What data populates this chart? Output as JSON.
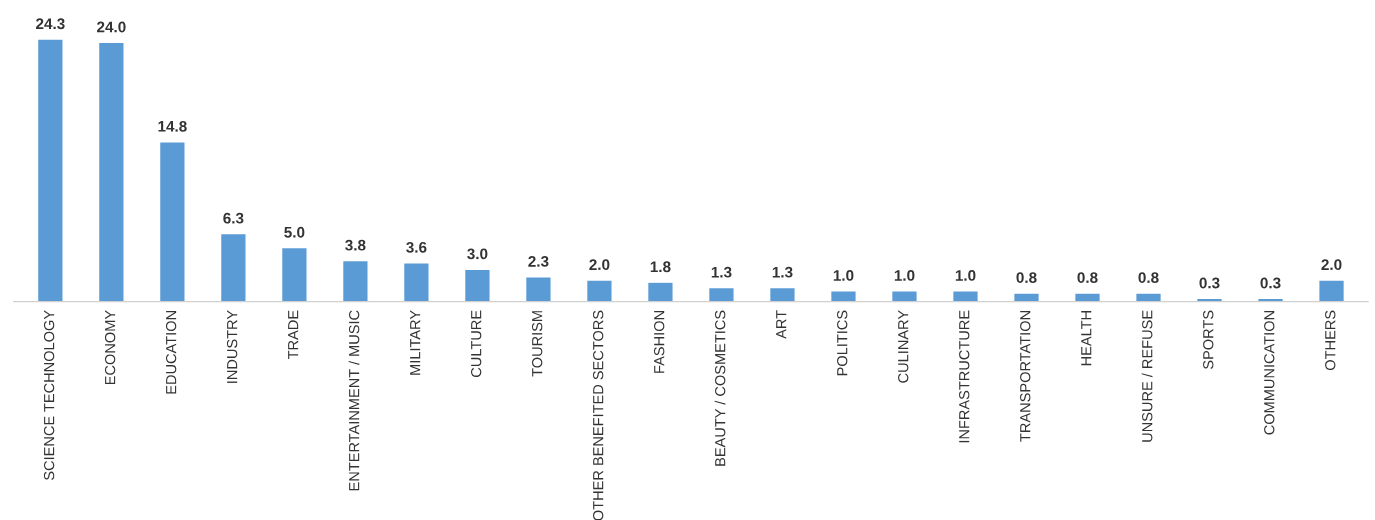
{
  "chart_data": {
    "type": "bar",
    "categories": [
      "SCIENCE TECHNOLOGY",
      "ECONOMY",
      "EDUCATION",
      "INDUSTRY",
      "TRADE",
      "ENTERTAINMENT / MUSIC",
      "MILITARY",
      "CULTURE",
      "TOURISM",
      "OTHER BENEFITED SECTORS",
      "FASHION",
      "BEAUTY / COSMETICS",
      "ART",
      "POLITICS",
      "CULINARY",
      "INFRASTRUCTURE",
      "TRANSPORTATION",
      "HEALTH",
      "UNSURE / REFUSE",
      "SPORTS",
      "COMMUNICATION",
      "OTHERS"
    ],
    "values": [
      24.3,
      24.0,
      14.8,
      6.3,
      5.0,
      3.8,
      3.6,
      3.0,
      2.3,
      2.0,
      1.8,
      1.3,
      1.3,
      1.0,
      1.0,
      1.0,
      0.8,
      0.8,
      0.8,
      0.3,
      0.3,
      2.0
    ],
    "value_labels": [
      "24.3",
      "24.0",
      "14.8",
      "6.3",
      "5.0",
      "3.8",
      "3.6",
      "3.0",
      "2.3",
      "2.0",
      "1.8",
      "1.3",
      "1.3",
      "1.0",
      "1.0",
      "1.0",
      "0.8",
      "0.8",
      "0.8",
      "0.3",
      "0.3",
      "2.0"
    ],
    "color": "#5b9bd5",
    "grid": false,
    "legend": false,
    "tick_labels": "x"
  }
}
